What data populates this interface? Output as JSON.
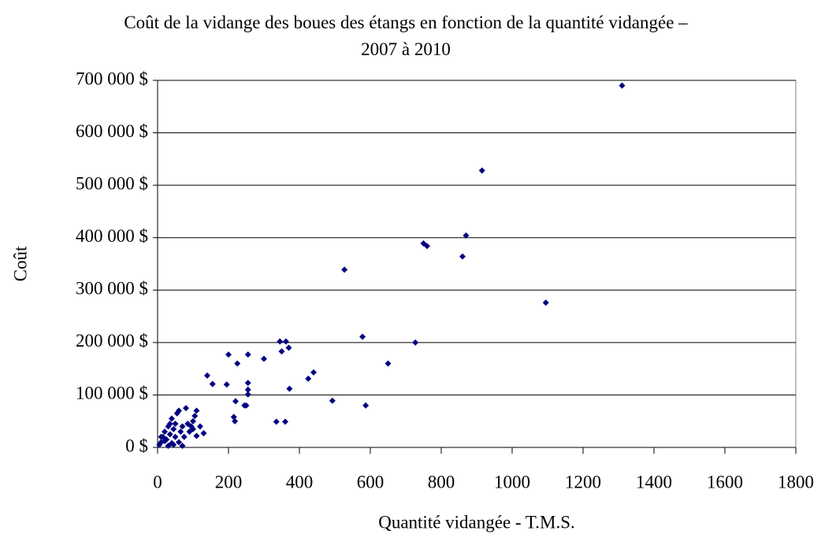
{
  "chart_data": {
    "type": "scatter",
    "title": "Coût de la vidange des boues des étangs en fonction de la quantité vidangée – 2007 à 2010",
    "x_label": "Quantité vidangée - T.M.S.",
    "y_label": "Coût",
    "color": "#000080",
    "grid": true,
    "xlim": [
      0,
      1800
    ],
    "xticks": [
      0,
      200,
      400,
      600,
      800,
      1000,
      1200,
      1400,
      1600,
      1800
    ],
    "ylim": [
      0,
      700000
    ],
    "yticks": [
      {
        "value": 0,
        "label": "0 $"
      },
      {
        "value": 100000,
        "label": "100 000 $"
      },
      {
        "value": 200000,
        "label": "200 000 $"
      },
      {
        "value": 300000,
        "label": "300 000 $"
      },
      {
        "value": 400000,
        "label": "400 000 $"
      },
      {
        "value": 500000,
        "label": "500 000 $"
      },
      {
        "value": 600000,
        "label": "600 000 $"
      },
      {
        "value": 700000,
        "label": "700 000 $"
      }
    ],
    "x": [
      1310,
      915,
      870,
      860,
      750,
      760,
      1095,
      527,
      578,
      727,
      650,
      587,
      493,
      440,
      425,
      370,
      362,
      345,
      350,
      372,
      360,
      335,
      300,
      255,
      200,
      225,
      140,
      155,
      195,
      255,
      255,
      255,
      245,
      250,
      220,
      215,
      218,
      130,
      110,
      105,
      100,
      95,
      110,
      80,
      85,
      70,
      60,
      55,
      40,
      30,
      20,
      15,
      10,
      5,
      25,
      35,
      45,
      50,
      60,
      70,
      30,
      40,
      20,
      50,
      65,
      75,
      90,
      100,
      120,
      35,
      10,
      45
    ],
    "values": [
      690000,
      528000,
      404000,
      364000,
      389000,
      384000,
      276000,
      339000,
      211000,
      200000,
      160000,
      80000,
      89000,
      143000,
      131000,
      190000,
      202000,
      202000,
      183000,
      112000,
      49000,
      49000,
      169000,
      177000,
      177000,
      160000,
      137000,
      121000,
      120000,
      123000,
      110000,
      101000,
      80000,
      80000,
      88000,
      58000,
      50000,
      27000,
      70000,
      60000,
      50000,
      40000,
      22000,
      75000,
      45000,
      40000,
      70000,
      65000,
      55000,
      40000,
      30000,
      20000,
      10000,
      5000,
      15000,
      25000,
      35000,
      20000,
      10000,
      3000,
      3000,
      8000,
      12000,
      45000,
      30000,
      20000,
      30000,
      35000,
      40000,
      45000,
      20000,
      5000
    ]
  }
}
